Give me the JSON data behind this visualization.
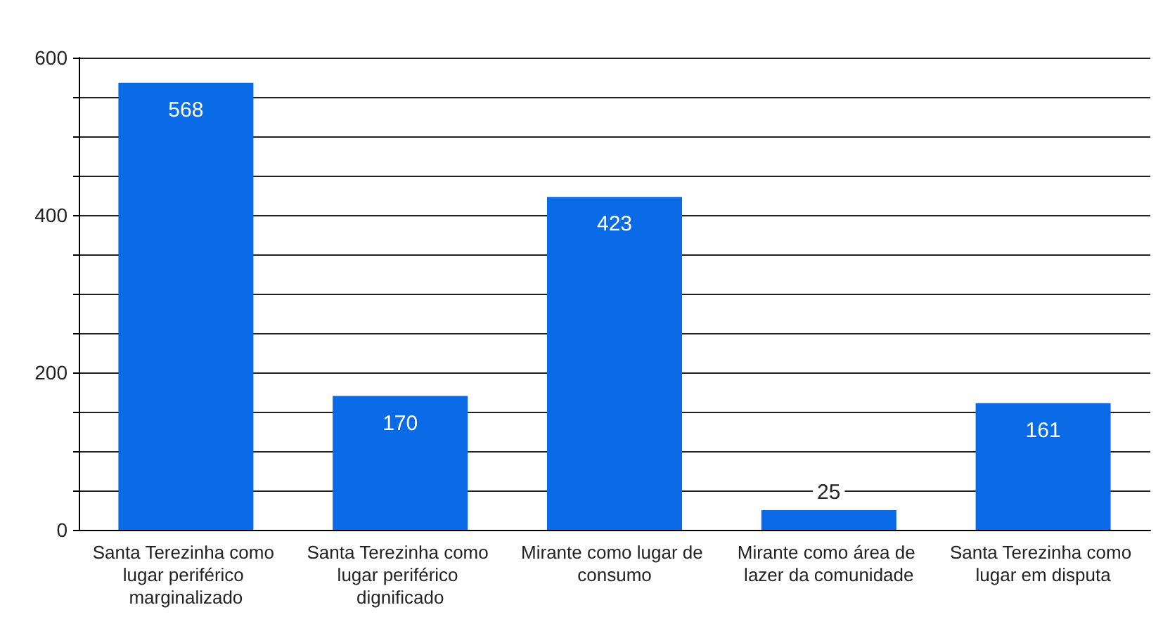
{
  "chart_data": {
    "type": "bar",
    "categories": [
      "Santa Terezinha como lugar periférico marginalizado",
      "Santa Terezinha como lugar periférico dignificado",
      "Mirante como lugar de consumo",
      "Mirante como área de lazer da comunidade",
      "Santa Terezinha como lugar em disputa"
    ],
    "values": [
      568,
      170,
      423,
      25,
      161
    ],
    "color": "#0b6be6",
    "ylim": [
      0,
      600
    ],
    "yticks": [
      0,
      {
        "value": 50,
        "label": null
      },
      {
        "value": 100,
        "label": null
      },
      {
        "value": 150,
        "label": null
      },
      200,
      {
        "value": 250,
        "label": null
      },
      {
        "value": 300,
        "label": null
      },
      {
        "value": 350,
        "label": null
      },
      400,
      {
        "value": 450,
        "label": null
      },
      {
        "value": 500,
        "label": null
      },
      {
        "value": 550,
        "label": null
      },
      600
    ],
    "grid": "y",
    "data_labels": true
  }
}
